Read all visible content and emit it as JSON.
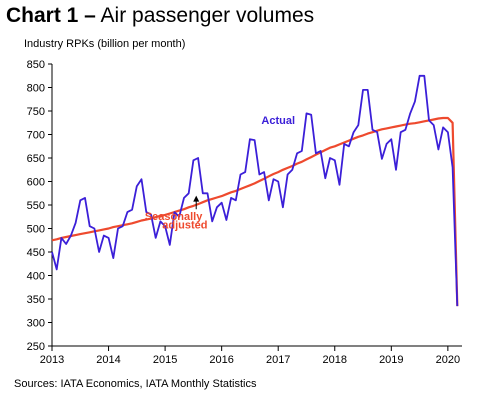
{
  "title": {
    "bold": "Chart 1 –",
    "rest": " Air passenger volumes"
  },
  "ylabel": "Industry RPKs (billion per month)",
  "source": "Sources: IATA Economics, IATA Monthly Statistics",
  "colors": {
    "actual": "#3b1fd8",
    "seasonal": "#ee4a2e",
    "axis": "#000000"
  },
  "chart_data": {
    "type": "line",
    "ylim": [
      250,
      850
    ],
    "yticks": [
      "250",
      "300",
      "350",
      "400",
      "450",
      "500",
      "550",
      "600",
      "650",
      "700",
      "750",
      "800",
      "850"
    ],
    "xlim": [
      2013,
      2020.25
    ],
    "xticks": [
      "2013",
      "2014",
      "2015",
      "2016",
      "2017",
      "2018",
      "2019",
      "2020"
    ],
    "grid": false,
    "annotations": [
      {
        "text": "Actual",
        "series": "actual",
        "x": 2017.0,
        "y": 722
      },
      {
        "text": "Seasonally",
        "series": "seasonal",
        "x": 2015.15,
        "y": 518
      },
      {
        "text": "adjusted",
        "series": "seasonal",
        "x": 2015.35,
        "y": 500
      }
    ],
    "arrow": {
      "x": 2015.55,
      "from_y": 541,
      "to_y": 570
    },
    "series": [
      {
        "key": "actual",
        "name": "Actual",
        "values": [
          450,
          413,
          480,
          467,
          485,
          512,
          560,
          565,
          505,
          500,
          450,
          485,
          480,
          437,
          500,
          505,
          535,
          540,
          590,
          605,
          535,
          530,
          480,
          515,
          505,
          465,
          535,
          525,
          565,
          575,
          645,
          650,
          575,
          575,
          515,
          545,
          555,
          518,
          565,
          560,
          615,
          620,
          690,
          688,
          615,
          620,
          560,
          605,
          600,
          545,
          615,
          625,
          660,
          665,
          745,
          742,
          660,
          665,
          607,
          650,
          645,
          593,
          680,
          675,
          705,
          720,
          795,
          795,
          710,
          705,
          648,
          680,
          690,
          625,
          705,
          710,
          745,
          770,
          825,
          825,
          730,
          720,
          668,
          715,
          705,
          630,
          335
        ]
      },
      {
        "key": "seasonal",
        "name": "Seasonally adjusted",
        "values": [
          475,
          477,
          480,
          482,
          484,
          486,
          488,
          490,
          492,
          494,
          496,
          498,
          500,
          503,
          505,
          507,
          509,
          511,
          514,
          517,
          519,
          521,
          524,
          527,
          529,
          532,
          535,
          538,
          541,
          545,
          548,
          552,
          556,
          560,
          563,
          566,
          569,
          573,
          577,
          580,
          584,
          588,
          592,
          596,
          601,
          606,
          611,
          616,
          620,
          625,
          629,
          633,
          638,
          642,
          647,
          652,
          657,
          662,
          667,
          672,
          675,
          679,
          683,
          687,
          691,
          695,
          698,
          702,
          705,
          708,
          711,
          713,
          715,
          717,
          719,
          721,
          723,
          724,
          726,
          728,
          730,
          732,
          734,
          735,
          735,
          725,
          335
        ]
      }
    ]
  }
}
